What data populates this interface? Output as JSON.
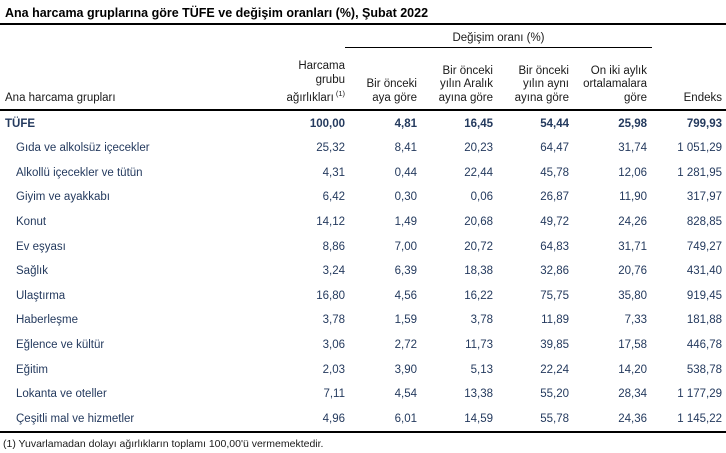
{
  "title": "Ana harcama gruplarına göre TÜFE ve değişim oranları (%), Şubat 2022",
  "table": {
    "group_header": "Değişim oranı (%)",
    "columns": {
      "groups": "Ana harcama grupları",
      "weights": "Harcama\ngrubu\nağırlıkları",
      "weights_footnote_marker": "(1)",
      "monthly": "Bir önceki\naya göre",
      "since_december": "Bir önceki\nyılın Aralık\nayına göre",
      "year_over_year": "Bir önceki\nyılın aynı\nayına göre",
      "twelve_month_avg": "On iki aylık\nortalamalara\ngöre",
      "index": "Endeks"
    },
    "rows": [
      {
        "label": "TÜFE",
        "weight": "100,00",
        "monthly": "4,81",
        "since_december": "16,45",
        "year_over_year": "54,44",
        "twelve_month_avg": "25,98",
        "index": "799,93"
      },
      {
        "label": "Gıda ve alkolsüz içecekler",
        "weight": "25,32",
        "monthly": "8,41",
        "since_december": "20,23",
        "year_over_year": "64,47",
        "twelve_month_avg": "31,74",
        "index": "1 051,29"
      },
      {
        "label": "Alkollü içecekler ve tütün",
        "weight": "4,31",
        "monthly": "0,44",
        "since_december": "22,44",
        "year_over_year": "45,78",
        "twelve_month_avg": "12,06",
        "index": "1 281,95"
      },
      {
        "label": "Giyim ve ayakkabı",
        "weight": "6,42",
        "monthly": "0,30",
        "since_december": "0,06",
        "year_over_year": "26,87",
        "twelve_month_avg": "11,90",
        "index": "317,97"
      },
      {
        "label": "Konut",
        "weight": "14,12",
        "monthly": "1,49",
        "since_december": "20,68",
        "year_over_year": "49,72",
        "twelve_month_avg": "24,26",
        "index": "828,85"
      },
      {
        "label": "Ev eşyası",
        "weight": "8,86",
        "monthly": "7,00",
        "since_december": "20,72",
        "year_over_year": "64,83",
        "twelve_month_avg": "31,71",
        "index": "749,27"
      },
      {
        "label": "Sağlık",
        "weight": "3,24",
        "monthly": "6,39",
        "since_december": "18,38",
        "year_over_year": "32,86",
        "twelve_month_avg": "20,76",
        "index": "431,40"
      },
      {
        "label": "Ulaştırma",
        "weight": "16,80",
        "monthly": "4,56",
        "since_december": "16,22",
        "year_over_year": "75,75",
        "twelve_month_avg": "35,80",
        "index": "919,45"
      },
      {
        "label": "Haberleşme",
        "weight": "3,78",
        "monthly": "1,59",
        "since_december": "3,78",
        "year_over_year": "11,89",
        "twelve_month_avg": "7,33",
        "index": "181,88"
      },
      {
        "label": "Eğlence ve kültür",
        "weight": "3,06",
        "monthly": "2,72",
        "since_december": "11,73",
        "year_over_year": "39,85",
        "twelve_month_avg": "17,58",
        "index": "446,78"
      },
      {
        "label": "Eğitim",
        "weight": "2,03",
        "monthly": "3,90",
        "since_december": "5,13",
        "year_over_year": "22,24",
        "twelve_month_avg": "14,20",
        "index": "538,78"
      },
      {
        "label": "Lokanta ve oteller",
        "weight": "7,11",
        "monthly": "4,54",
        "since_december": "13,38",
        "year_over_year": "55,20",
        "twelve_month_avg": "28,34",
        "index": "1 177,29"
      },
      {
        "label": "Çeşitli mal ve hizmetler",
        "weight": "4,96",
        "monthly": "6,01",
        "since_december": "14,59",
        "year_over_year": "55,78",
        "twelve_month_avg": "24,36",
        "index": "1 145,22"
      }
    ]
  },
  "footnote": "(1) Yuvarlamadan dolayı ağırlıkların toplamı 100,00'ü vermemektedir.",
  "colors": {
    "data_text": "#243a5e",
    "rule": "#000000"
  }
}
